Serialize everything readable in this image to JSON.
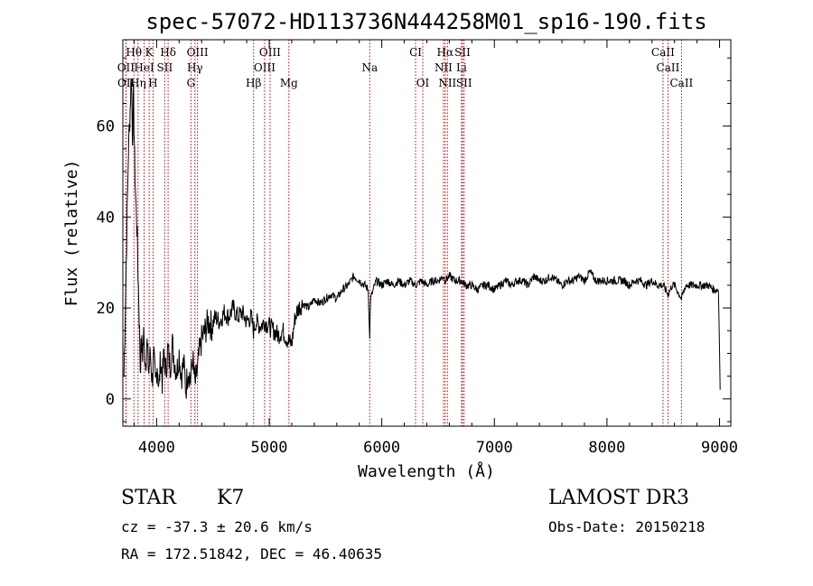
{
  "chart_data": {
    "type": "line",
    "title": "spec-57072-HD113736N444258M01_sp16-190.fits",
    "xlabel": "Wavelength (Å)",
    "ylabel": "Flux (relative)",
    "xlim": [
      3700,
      9100
    ],
    "ylim": [
      -6,
      79
    ],
    "xticks": [
      4000,
      5000,
      6000,
      7000,
      8000,
      9000
    ],
    "yticks": [
      0,
      20,
      40,
      60
    ],
    "grid": false,
    "series": [
      {
        "color": "#000000",
        "points": [
          [
            3710,
            5
          ],
          [
            3730,
            30
          ],
          [
            3750,
            55
          ],
          [
            3765,
            64
          ],
          [
            3775,
            72
          ],
          [
            3785,
            58
          ],
          [
            3795,
            66
          ],
          [
            3805,
            52
          ],
          [
            3815,
            44
          ],
          [
            3825,
            38
          ],
          [
            3835,
            28
          ],
          [
            3845,
            18
          ],
          [
            3855,
            7
          ],
          [
            3865,
            12
          ],
          [
            3875,
            10
          ],
          [
            3885,
            14
          ],
          [
            3900,
            8
          ],
          [
            3915,
            12
          ],
          [
            3930,
            6
          ],
          [
            3945,
            10
          ],
          [
            3960,
            4
          ],
          [
            3975,
            9
          ],
          [
            3990,
            3
          ],
          [
            4005,
            8
          ],
          [
            4020,
            2
          ],
          [
            4035,
            9
          ],
          [
            4050,
            4
          ],
          [
            4065,
            10
          ],
          [
            4080,
            6
          ],
          [
            4100,
            11
          ],
          [
            4120,
            7
          ],
          [
            4140,
            12
          ],
          [
            4160,
            8
          ],
          [
            4180,
            6
          ],
          [
            4200,
            10
          ],
          [
            4220,
            5
          ],
          [
            4240,
            8
          ],
          [
            4260,
            2
          ],
          [
            4280,
            7
          ],
          [
            4300,
            4
          ],
          [
            4320,
            9
          ],
          [
            4340,
            3
          ],
          [
            4360,
            6
          ],
          [
            4380,
            10
          ],
          [
            4400,
            13
          ],
          [
            4430,
            15
          ],
          [
            4460,
            17
          ],
          [
            4490,
            16
          ],
          [
            4520,
            18
          ],
          [
            4560,
            17
          ],
          [
            4600,
            19
          ],
          [
            4640,
            18
          ],
          [
            4680,
            20
          ],
          [
            4720,
            18
          ],
          [
            4760,
            19
          ],
          [
            4800,
            17
          ],
          [
            4840,
            18
          ],
          [
            4860,
            15
          ],
          [
            4880,
            17
          ],
          [
            4920,
            16
          ],
          [
            4960,
            17
          ],
          [
            5000,
            16
          ],
          [
            5040,
            15
          ],
          [
            5080,
            14
          ],
          [
            5120,
            15
          ],
          [
            5160,
            13
          ],
          [
            5200,
            12
          ],
          [
            5230,
            18
          ],
          [
            5260,
            20
          ],
          [
            5300,
            21
          ],
          [
            5350,
            20
          ],
          [
            5400,
            22
          ],
          [
            5450,
            21
          ],
          [
            5500,
            22
          ],
          [
            5550,
            23
          ],
          [
            5600,
            22
          ],
          [
            5650,
            24
          ],
          [
            5700,
            25
          ],
          [
            5750,
            27
          ],
          [
            5800,
            26
          ],
          [
            5850,
            25
          ],
          [
            5880,
            24
          ],
          [
            5893,
            13
          ],
          [
            5900,
            22
          ],
          [
            5950,
            26
          ],
          [
            6000,
            25
          ],
          [
            6050,
            26
          ],
          [
            6100,
            25
          ],
          [
            6150,
            26
          ],
          [
            6200,
            25
          ],
          [
            6250,
            26
          ],
          [
            6300,
            25
          ],
          [
            6350,
            26
          ],
          [
            6400,
            25
          ],
          [
            6450,
            26
          ],
          [
            6500,
            26
          ],
          [
            6550,
            27
          ],
          [
            6563,
            26
          ],
          [
            6600,
            27
          ],
          [
            6650,
            26
          ],
          [
            6700,
            26
          ],
          [
            6750,
            25
          ],
          [
            6800,
            25
          ],
          [
            6850,
            24
          ],
          [
            6900,
            25
          ],
          [
            6950,
            25
          ],
          [
            7000,
            24
          ],
          [
            7050,
            25
          ],
          [
            7100,
            26
          ],
          [
            7150,
            25
          ],
          [
            7200,
            26
          ],
          [
            7250,
            26
          ],
          [
            7300,
            25
          ],
          [
            7350,
            27
          ],
          [
            7400,
            26
          ],
          [
            7450,
            26
          ],
          [
            7500,
            27
          ],
          [
            7550,
            26
          ],
          [
            7600,
            25
          ],
          [
            7650,
            26
          ],
          [
            7700,
            26
          ],
          [
            7750,
            27
          ],
          [
            7800,
            26
          ],
          [
            7850,
            28
          ],
          [
            7900,
            26
          ],
          [
            7950,
            26
          ],
          [
            8000,
            26
          ],
          [
            8050,
            26
          ],
          [
            8100,
            26
          ],
          [
            8150,
            26
          ],
          [
            8200,
            25
          ],
          [
            8250,
            26
          ],
          [
            8300,
            26
          ],
          [
            8350,
            25
          ],
          [
            8400,
            26
          ],
          [
            8450,
            25
          ],
          [
            8500,
            25
          ],
          [
            8542,
            23
          ],
          [
            8580,
            25
          ],
          [
            8600,
            25
          ],
          [
            8662,
            22
          ],
          [
            8700,
            25
          ],
          [
            8750,
            25
          ],
          [
            8800,
            25
          ],
          [
            8850,
            25
          ],
          [
            8900,
            25
          ],
          [
            8950,
            24
          ],
          [
            8990,
            24
          ],
          [
            9000,
            12
          ],
          [
            9005,
            2
          ]
        ]
      }
    ],
    "line_markers": [
      {
        "label": "Hθ",
        "wavelength": 3798,
        "row": 0
      },
      {
        "label": "K",
        "wavelength": 3934,
        "row": 0
      },
      {
        "label": "Hδ",
        "wavelength": 4102,
        "row": 0
      },
      {
        "label": "OIII",
        "wavelength": 4363,
        "row": 0
      },
      {
        "label": "OIII",
        "wavelength": 5007,
        "row": 0
      },
      {
        "label": "CI",
        "wavelength": 6300,
        "row": 0
      },
      {
        "label": "Hα",
        "wavelength": 6563,
        "row": 0
      },
      {
        "label": "SII",
        "wavelength": 6717,
        "row": 0
      },
      {
        "label": "CaII",
        "wavelength": 8498,
        "row": 0
      },
      {
        "label": "OII",
        "wavelength": 3727,
        "row": 1
      },
      {
        "label": "HeI",
        "wavelength": 3889,
        "row": 1
      },
      {
        "label": "SII",
        "wavelength": 4072,
        "row": 1
      },
      {
        "label": "Hγ",
        "wavelength": 4340,
        "row": 1
      },
      {
        "label": "OIII",
        "wavelength": 4959,
        "row": 1
      },
      {
        "label": "Na",
        "wavelength": 5893,
        "row": 1
      },
      {
        "label": "NII",
        "wavelength": 6548,
        "row": 1
      },
      {
        "label": "Li",
        "wavelength": 6708,
        "row": 1
      },
      {
        "label": "CaII",
        "wavelength": 8542,
        "row": 1
      },
      {
        "label": "OII",
        "wavelength": 3729,
        "row": 2
      },
      {
        "label": "Hη",
        "wavelength": 3835,
        "row": 2
      },
      {
        "label": "H",
        "wavelength": 3968,
        "row": 2
      },
      {
        "label": "G",
        "wavelength": 4305,
        "row": 2
      },
      {
        "label": "Hβ",
        "wavelength": 4861,
        "row": 2
      },
      {
        "label": "Mg",
        "wavelength": 5175,
        "row": 2
      },
      {
        "label": "OI",
        "wavelength": 6364,
        "row": 2
      },
      {
        "label": "NII",
        "wavelength": 6583,
        "row": 2
      },
      {
        "label": "SII",
        "wavelength": 6731,
        "row": 2
      },
      {
        "label": "CaII",
        "wavelength": 8662,
        "row": 2
      }
    ],
    "marker_color": "#cc0000"
  },
  "info": {
    "class": "STAR",
    "subclass": "K7",
    "redshift": "cz = -37.3 ± 20.6 km/s",
    "coords": "RA = 172.51842, DEC =  46.40635",
    "survey": "LAMOST DR3",
    "obs_date": "Obs-Date: 20150218"
  }
}
